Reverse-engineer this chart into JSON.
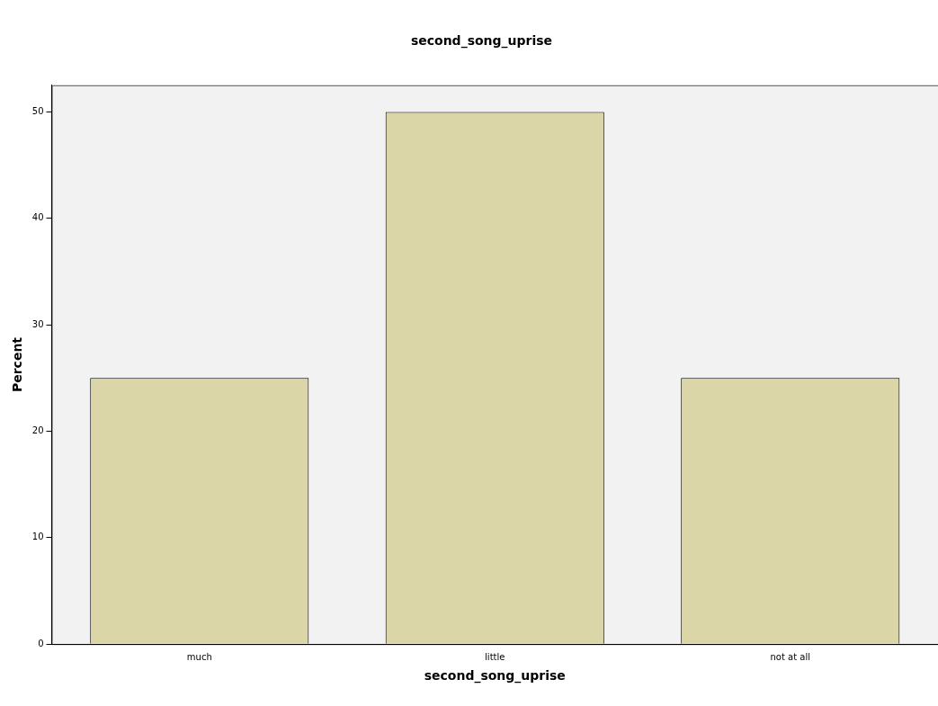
{
  "chart_data": {
    "type": "bar",
    "title": "second_song_uprise",
    "xlabel": "second_song_uprise",
    "ylabel": "Percent",
    "categories": [
      "much",
      "little",
      "not at all"
    ],
    "values": [
      25,
      50,
      25
    ],
    "color": "#dbd6a8",
    "ylim": [
      0,
      52.5
    ],
    "yticks": [
      0,
      10,
      20,
      30,
      40,
      50
    ],
    "grid": false,
    "legend": false
  }
}
